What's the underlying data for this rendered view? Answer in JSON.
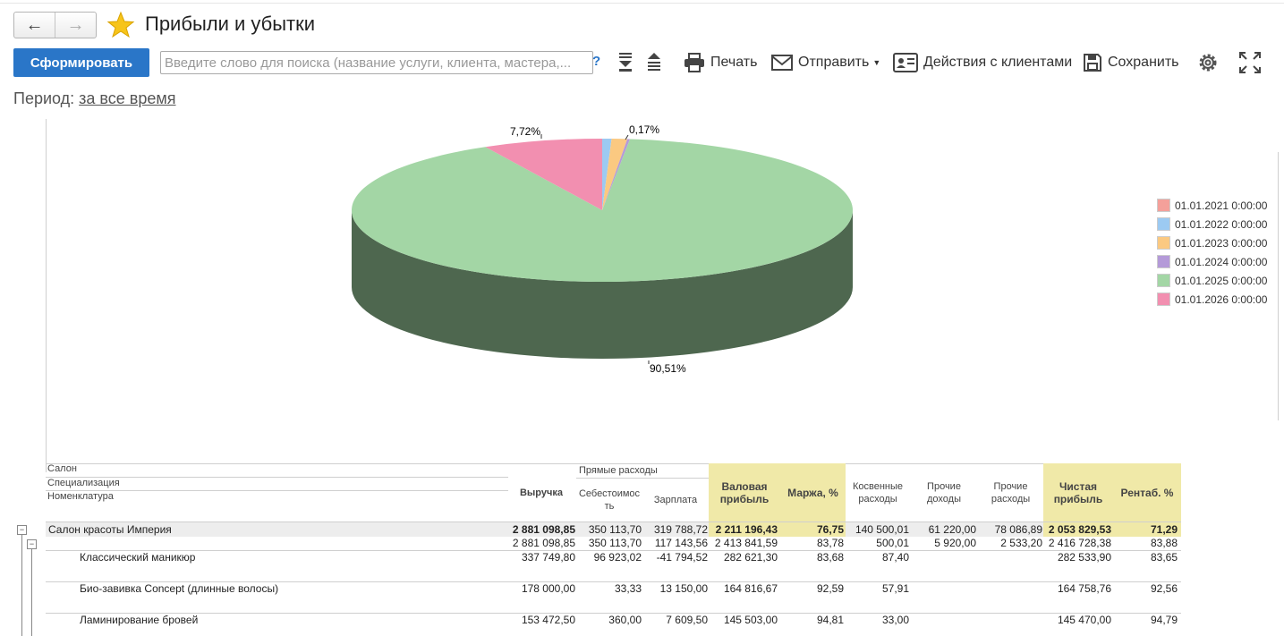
{
  "window": {
    "title": "Прибыли и убытки"
  },
  "nav": {
    "back": "←",
    "forward": "→"
  },
  "toolbar": {
    "generate_label": "Сформировать",
    "search_placeholder": "Введите слово для поиска (название услуги, клиента, мастера,...",
    "help_label": "?",
    "print_label": "Печать",
    "send_label": "Отправить",
    "clients_label": "Действия с клиентами",
    "save_label": "Сохранить"
  },
  "period": {
    "label": "Период:",
    "value": "за все время"
  },
  "chart_data": {
    "type": "pie",
    "labels": [
      "01.01.2021 0:00:00",
      "01.01.2022 0:00:00",
      "01.01.2023 0:00:00",
      "01.01.2024 0:00:00",
      "01.01.2025 0:00:00",
      "01.01.2026 0:00:00"
    ],
    "values": [
      0.0,
      0.6,
      1.0,
      0.17,
      90.51,
      7.72
    ],
    "colors": [
      "#f4a09a",
      "#9ccaf2",
      "#fbc981",
      "#b49ad8",
      "#a3d6a5",
      "#f28fb0"
    ],
    "data_labels": {
      "p0": "7,72%",
      "p1": "0,17%",
      "p2": "90,51%"
    },
    "legend_position": "right"
  },
  "table": {
    "headers": {
      "salon": "Салон",
      "specialization": "Специализация",
      "nomenclature": "Номенклатура",
      "revenue": "Выручка",
      "direct": "Прямые расходы",
      "cost": "Себестоимос\nть",
      "salary": "Зарплата",
      "gross": "Валовая\nприбыль",
      "margin": "Маржа, %",
      "indirect": "Косвенные\nрасходы",
      "other_income": "Прочие\nдоходы",
      "other_exp": "Прочие\nрасходы",
      "net": "Чистая\nприбыль",
      "profitability": "Рентаб. %"
    },
    "rows": [
      {
        "name": "Салон красоты Империя",
        "revenue": "2 881 098,85",
        "cost": "350 113,70",
        "salary": "319 788,72",
        "gross": "2 211 196,43",
        "margin": "76,75",
        "indirect": "140 500,01",
        "other_income": "61 220,00",
        "other_exp": "78 086,89",
        "net": "2 053 829,53",
        "prof": "71,29"
      },
      {
        "name": "",
        "revenue": "2 881 098,85",
        "cost": "350 113,70",
        "salary": "117 143,56",
        "gross": "2 413 841,59",
        "margin": "83,78",
        "indirect": "500,01",
        "other_income": "5 920,00",
        "other_exp": "2 533,20",
        "net": "2 416 728,38",
        "prof": "83,88"
      },
      {
        "name": "Классический маникюр",
        "revenue": "337 749,80",
        "cost": "96 923,02",
        "salary": "-41 794,52",
        "gross": "282 621,30",
        "margin": "83,68",
        "indirect": "87,40",
        "other_income": "",
        "other_exp": "",
        "net": "282 533,90",
        "prof": "83,65"
      },
      {
        "name": "Био-завивка Concept (длинные волосы)",
        "revenue": "178 000,00",
        "cost": "33,33",
        "salary": "13 150,00",
        "gross": "164 816,67",
        "margin": "92,59",
        "indirect": "57,91",
        "other_income": "",
        "other_exp": "",
        "net": "164 758,76",
        "prof": "92,56"
      },
      {
        "name": "Ламинирование бровей",
        "revenue": "153 472,50",
        "cost": "360,00",
        "salary": "7 609,50",
        "gross": "145 503,00",
        "margin": "94,81",
        "indirect": "33,00",
        "other_income": "",
        "other_exp": "",
        "net": "145 470,00",
        "prof": "94,79"
      }
    ]
  }
}
